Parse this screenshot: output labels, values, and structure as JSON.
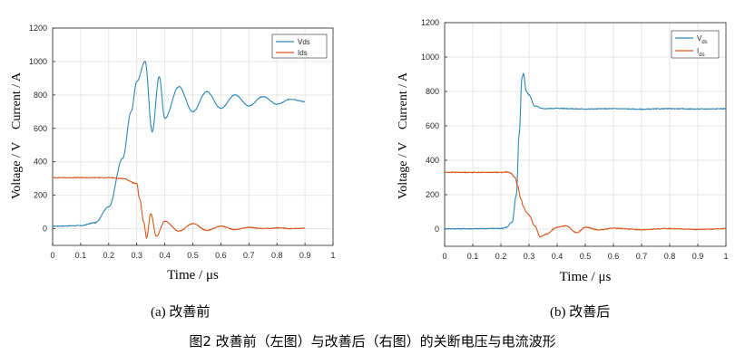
{
  "colors": {
    "vds": "#2E86B8",
    "ids": "#D9541A",
    "grid": "#e6e6e6",
    "axis": "#262626"
  },
  "chart_data": [
    {
      "type": "line",
      "ylabel": "Voltage / V    Current / A",
      "xlabel": "Time / μs",
      "xlim": [
        0,
        1
      ],
      "ylim": [
        -100,
        1200
      ],
      "xticks": [
        "0",
        "0.1",
        "0.2",
        "0.3",
        "0.4",
        "0.5",
        "0.6",
        "0.7",
        "0.8",
        "0.9",
        "1"
      ],
      "yticks": [
        "0",
        "200",
        "400",
        "600",
        "800",
        "1000",
        "1200"
      ],
      "grid": true,
      "legend_position": "top-right",
      "series": [
        {
          "name": "Vds",
          "color": "#2E86B8",
          "x": [
            0,
            0.1,
            0.15,
            0.2,
            0.25,
            0.28,
            0.3,
            0.33,
            0.355,
            0.38,
            0.4,
            0.45,
            0.5,
            0.55,
            0.6,
            0.65,
            0.7,
            0.75,
            0.8,
            0.85,
            0.9
          ],
          "y": [
            15,
            18,
            35,
            130,
            420,
            700,
            880,
            1000,
            580,
            910,
            660,
            850,
            700,
            820,
            720,
            800,
            735,
            790,
            745,
            775,
            760
          ]
        },
        {
          "name": "Ids",
          "color": "#D9541A",
          "x": [
            0,
            0.1,
            0.2,
            0.25,
            0.3,
            0.31,
            0.325,
            0.335,
            0.35,
            0.37,
            0.4,
            0.45,
            0.5,
            0.55,
            0.6,
            0.65,
            0.7,
            0.75,
            0.8,
            0.85,
            0.9
          ],
          "y": [
            305,
            305,
            305,
            300,
            270,
            180,
            40,
            -55,
            90,
            -45,
            45,
            -15,
            30,
            -10,
            15,
            -5,
            8,
            0,
            5,
            0,
            3
          ]
        }
      ]
    },
    {
      "type": "line",
      "ylabel": "Voltage / V    Current / A",
      "xlabel": "Time / μs",
      "xlim": [
        0,
        1
      ],
      "ylim": [
        -100,
        1200
      ],
      "xticks": [
        "0",
        "0.1",
        "0.2",
        "0.3",
        "0.4",
        "0.5",
        "0.6",
        "0.7",
        "0.8",
        "0.9",
        "1"
      ],
      "yticks": [
        "0",
        "200",
        "400",
        "600",
        "800",
        "1000",
        "1200"
      ],
      "grid": true,
      "legend_position": "top-right",
      "series": [
        {
          "name": "V_ds",
          "label_main": "V",
          "label_sub": "ds",
          "color": "#2E86B8",
          "x": [
            0,
            0.1,
            0.2,
            0.22,
            0.24,
            0.255,
            0.265,
            0.275,
            0.28,
            0.29,
            0.3,
            0.32,
            0.35,
            0.4,
            0.5,
            0.6,
            0.7,
            0.8,
            0.9,
            1.0
          ],
          "y": [
            2,
            2,
            4,
            10,
            40,
            200,
            550,
            880,
            905,
            800,
            780,
            715,
            700,
            702,
            698,
            700,
            697,
            700,
            698,
            700
          ]
        },
        {
          "name": "I_ds",
          "label_main": "I",
          "label_sub": "ds",
          "color": "#D9541A",
          "x": [
            0,
            0.1,
            0.2,
            0.22,
            0.235,
            0.25,
            0.26,
            0.27,
            0.28,
            0.29,
            0.3,
            0.32,
            0.34,
            0.36,
            0.4,
            0.43,
            0.47,
            0.5,
            0.55,
            0.6,
            0.7,
            0.8,
            0.9,
            1.0
          ],
          "y": [
            330,
            330,
            330,
            332,
            325,
            300,
            250,
            180,
            130,
            100,
            80,
            20,
            -45,
            -30,
            10,
            20,
            -20,
            10,
            -5,
            5,
            -3,
            3,
            -2,
            2
          ]
        }
      ]
    }
  ],
  "captions": {
    "a": "(a)  改善前",
    "b": "(b)  改善后",
    "figure": "图2    改善前（左图）与改善后（右图）的关断电压与电流波形"
  }
}
